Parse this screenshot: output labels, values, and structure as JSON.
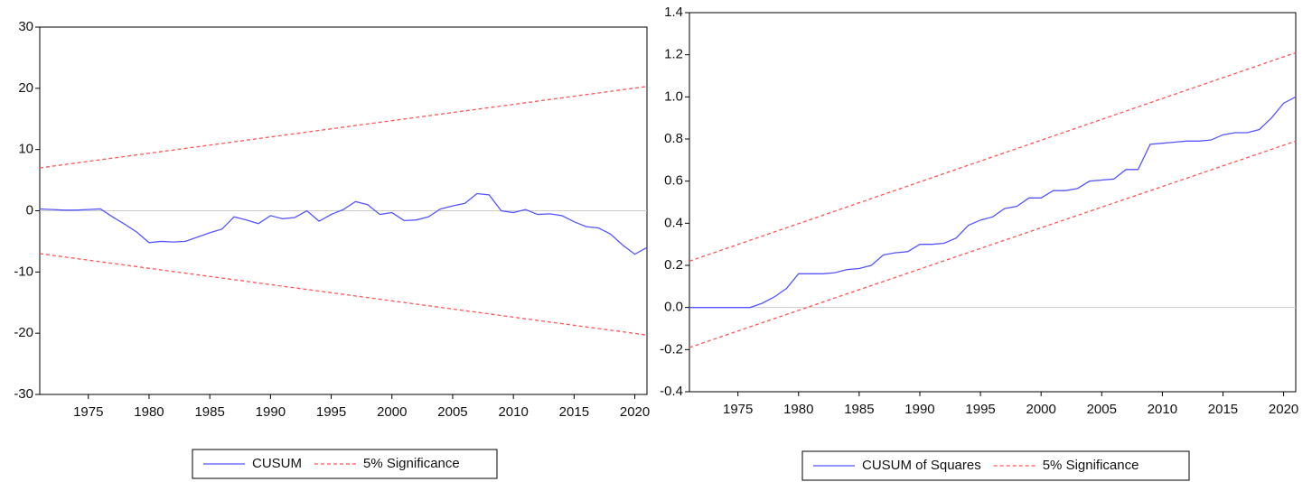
{
  "chart_data": [
    {
      "type": "line",
      "x": [
        1971,
        1972,
        1973,
        1974,
        1975,
        1976,
        1977,
        1978,
        1979,
        1980,
        1981,
        1982,
        1983,
        1984,
        1985,
        1986,
        1987,
        1988,
        1989,
        1990,
        1991,
        1992,
        1993,
        1994,
        1995,
        1996,
        1997,
        1998,
        1999,
        2000,
        2001,
        2002,
        2003,
        2004,
        2005,
        2006,
        2007,
        2008,
        2009,
        2010,
        2011,
        2012,
        2013,
        2014,
        2015,
        2016,
        2017,
        2018,
        2019,
        2020,
        2021
      ],
      "series": [
        {
          "name": "CUSUM",
          "color": "#5555ff",
          "values": [
            0.3,
            0.2,
            0.1,
            0.1,
            0.2,
            0.3,
            -1,
            -2.2,
            -3.5,
            -5.2,
            -5,
            -5.1,
            -5,
            -4.3,
            -3.6,
            -3,
            -1,
            -1.5,
            -2.1,
            -0.8,
            -1.3,
            -1.1,
            0,
            -1.7,
            -0.6,
            0.2,
            1.5,
            1,
            -0.6,
            -0.3,
            -1.6,
            -1.5,
            -1,
            0.3,
            0.8,
            1.2,
            2.8,
            2.6,
            0,
            -0.3,
            0.2,
            -0.6,
            -0.5,
            -0.8,
            -1.8,
            -2.6,
            -2.8,
            -3.8,
            -5.6,
            -7.1,
            -6
          ]
        },
        {
          "name": "5% Significance",
          "color": "#ff5555",
          "dashed": true,
          "x": [
            1971,
            2021
          ],
          "upper": [
            7,
            20.3
          ],
          "lower": [
            -7,
            -20.3
          ]
        }
      ],
      "xlim": [
        1971,
        2021
      ],
      "xticks": [
        1975,
        1980,
        1985,
        1990,
        1995,
        2000,
        2005,
        2010,
        2015,
        2020
      ],
      "ylim": [
        -30,
        30
      ],
      "yticks": [
        -30,
        -20,
        -10,
        0,
        10,
        20,
        30
      ]
    },
    {
      "type": "line",
      "x": [
        1971,
        1972,
        1973,
        1974,
        1975,
        1976,
        1977,
        1978,
        1979,
        1980,
        1981,
        1982,
        1983,
        1984,
        1985,
        1986,
        1987,
        1988,
        1989,
        1990,
        1991,
        1992,
        1993,
        1994,
        1995,
        1996,
        1997,
        1998,
        1999,
        2000,
        2001,
        2002,
        2003,
        2004,
        2005,
        2006,
        2007,
        2008,
        2009,
        2010,
        2011,
        2012,
        2013,
        2014,
        2015,
        2016,
        2017,
        2018,
        2019,
        2020,
        2021
      ],
      "series": [
        {
          "name": "CUSUM of Squares",
          "color": "#5555ff",
          "values": [
            0,
            0,
            0,
            0,
            0,
            0,
            0.02,
            0.05,
            0.09,
            0.16,
            0.16,
            0.16,
            0.165,
            0.18,
            0.185,
            0.2,
            0.25,
            0.26,
            0.265,
            0.3,
            0.3,
            0.305,
            0.33,
            0.39,
            0.415,
            0.43,
            0.47,
            0.48,
            0.52,
            0.52,
            0.555,
            0.555,
            0.565,
            0.6,
            0.605,
            0.61,
            0.655,
            0.655,
            0.775,
            0.78,
            0.785,
            0.79,
            0.79,
            0.795,
            0.82,
            0.83,
            0.83,
            0.845,
            0.9,
            0.97,
            1.0
          ]
        },
        {
          "name": "5% Significance",
          "color": "#ff5555",
          "dashed": true,
          "x": [
            1971,
            2021
          ],
          "upper": [
            0.22,
            1.21
          ],
          "lower": [
            -0.19,
            0.79
          ]
        }
      ],
      "xlim": [
        1971,
        2021
      ],
      "xticks": [
        1975,
        1980,
        1985,
        1990,
        1995,
        2000,
        2005,
        2010,
        2015,
        2020
      ],
      "ylim": [
        -0.4,
        1.4
      ],
      "yticks": [
        -0.4,
        -0.2,
        {
          "value": 0,
          "label": "0.0"
        },
        0.2,
        0.4,
        0.6,
        0.8,
        {
          "value": 1,
          "label": "1.0"
        },
        1.2,
        1.4
      ]
    }
  ]
}
